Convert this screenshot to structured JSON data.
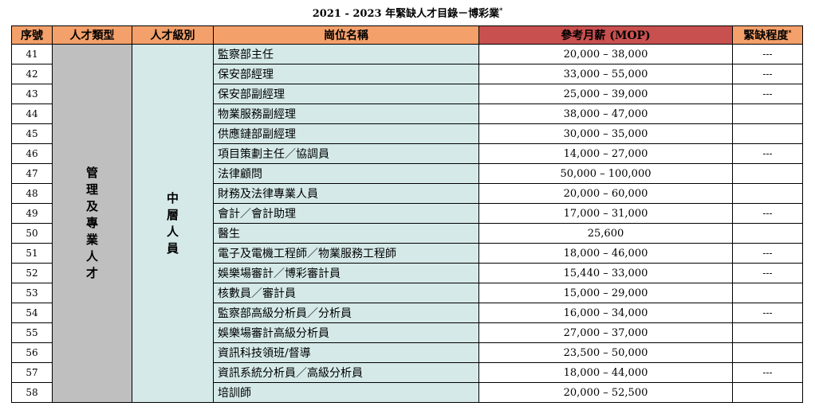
{
  "title": "2021 - 2023 年緊缺人才目錄－博彩業",
  "title_mark": "*",
  "headers": {
    "seq": "序號",
    "talent_type": "人才類型",
    "talent_level": "人才級別",
    "position": "崗位名稱",
    "salary": "參考月薪 (MOP)",
    "severity": "緊缺程度",
    "severity_mark": "*"
  },
  "talent_type": "管理及專業人才",
  "talent_level": "中層人員",
  "rows": [
    {
      "no": "41",
      "position": "監察部主任",
      "salary": "20,000 – 38,000",
      "severity": "---"
    },
    {
      "no": "42",
      "position": "保安部經理",
      "salary": "33,000 – 55,000",
      "severity": "---"
    },
    {
      "no": "43",
      "position": "保安部副經理",
      "salary": "25,000 – 39,000",
      "severity": "---"
    },
    {
      "no": "44",
      "position": "物業服務副經理",
      "salary": "38,000 – 47,000",
      "severity": ""
    },
    {
      "no": "45",
      "position": "供應鏈部副經理",
      "salary": "30,000 – 35,000",
      "severity": ""
    },
    {
      "no": "46",
      "position": "項目策劃主任／協調員",
      "salary": "14,000 – 27,000",
      "severity": "---"
    },
    {
      "no": "47",
      "position": "法律顧問",
      "salary": "50,000 – 100,000",
      "severity": ""
    },
    {
      "no": "48",
      "position": "財務及法律專業人員",
      "salary": "20,000 – 60,000",
      "severity": ""
    },
    {
      "no": "49",
      "position": "會計／會計助理",
      "salary": "17,000 – 31,000",
      "severity": "---"
    },
    {
      "no": "50",
      "position": "醫生",
      "salary": "25,600",
      "severity": ""
    },
    {
      "no": "51",
      "position": "電子及電機工程師／物業服務工程師",
      "salary": "18,000 – 46,000",
      "severity": "---"
    },
    {
      "no": "52",
      "position": "娛樂場審計／博彩審計員",
      "salary": "15,440 – 33,000",
      "severity": "---"
    },
    {
      "no": "53",
      "position": "核數員／審計員",
      "salary": "15,000 – 29,000",
      "severity": ""
    },
    {
      "no": "54",
      "position": "監察部高級分析員／分析員",
      "salary": "16,000 – 34,000",
      "severity": "---"
    },
    {
      "no": "55",
      "position": "娛樂場審計高級分析員",
      "salary": "27,000 – 37,000",
      "severity": ""
    },
    {
      "no": "56",
      "position": "資訊科技領班/督導",
      "salary": "23,500 – 50,000",
      "severity": ""
    },
    {
      "no": "57",
      "position": "資訊系統分析員／高級分析員",
      "salary": "18,000 – 44,000",
      "severity": "---"
    },
    {
      "no": "58",
      "position": "培訓師",
      "salary": "20,000 – 52,500",
      "severity": ""
    }
  ]
}
